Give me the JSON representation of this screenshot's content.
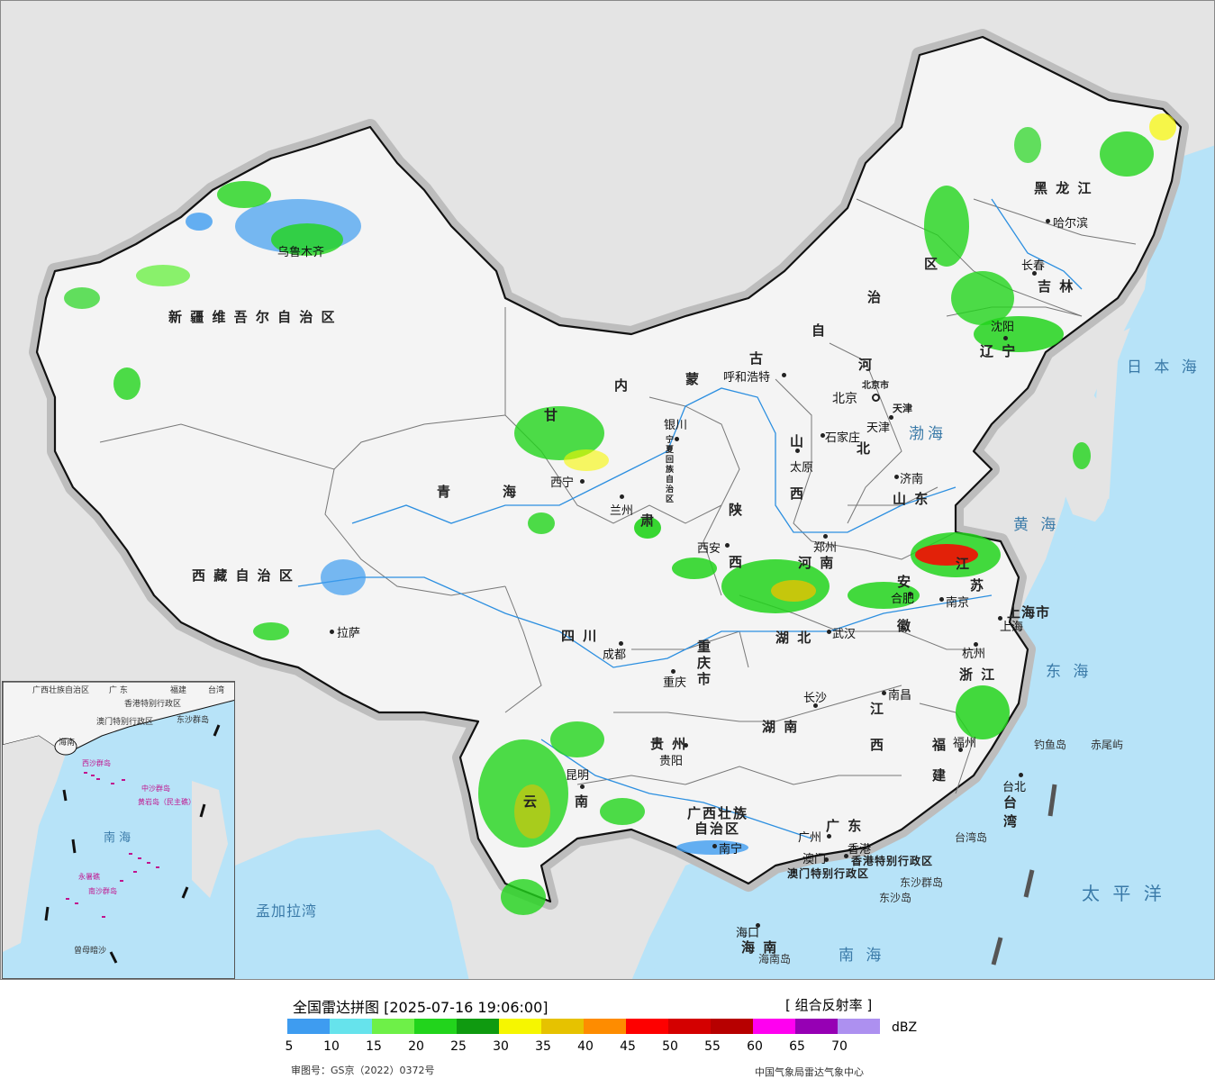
{
  "legend": {
    "title": "全国雷达拼图 [2025-07-16 19:06:00]",
    "mode": "[ 组合反射率 ]",
    "unit": "dBZ",
    "review_number": "审图号：GS京（2022）0372号",
    "organization": "中国气象局雷达气象中心",
    "ticks": [
      "5",
      "10",
      "15",
      "20",
      "25",
      "30",
      "35",
      "40",
      "45",
      "50",
      "55",
      "60",
      "65",
      "70"
    ],
    "colors": [
      "#3e9cf0",
      "#66e3ec",
      "#6ef048",
      "#22d41c",
      "#0f9a10",
      "#f6f600",
      "#e6c200",
      "#fe8c00",
      "#fe0000",
      "#d40000",
      "#b70000",
      "#ff00f0",
      "#9600b4",
      "#ad90f0"
    ]
  },
  "map": {
    "provinces": {
      "xinjiang": "新 疆 维 吾 尔 自 治 区",
      "xizang": "西 藏 自 治 区",
      "qinghai_1": "青",
      "qinghai_2": "海",
      "gansu_1": "甘",
      "gansu_2": "肃",
      "neimenggu_1": "内",
      "neimenggu_2": "蒙",
      "neimenggu_3": "古",
      "neimenggu_4": "自",
      "neimenggu_5": "治",
      "neimenggu_6": "区",
      "heilongjiang": "黑 龙 江",
      "jilin": "吉 林",
      "liaoning": "辽 宁",
      "hebei_1": "河",
      "hebei_2": "北",
      "shanxi_1": "山",
      "shanxi_2": "西",
      "shaanxi_1": "陕",
      "shaanxi_2": "西",
      "shandong": "山 东",
      "henan": "河 南",
      "jiangsu_1": "江",
      "jiangsu_2": "苏",
      "anhui_1": "安",
      "anhui_2": "徽",
      "hubei": "湖 北",
      "sichuan": "四 川",
      "chongqing_1": "重",
      "chongqing_2": "庆",
      "chongqing_3": "市",
      "zhejiang": "浙 江",
      "hunan": "湖 南",
      "jiangxi_1": "江",
      "jiangxi_2": "西",
      "fujian_1": "福",
      "fujian_2": "建",
      "guizhou": "贵 州",
      "yunnan_1": "云",
      "yunnan_2": "南",
      "guangxi_1": "广西壮族",
      "guangxi_2": "自治区",
      "guangdong": "广 东",
      "hainan": "海 南",
      "taiwan_1": "台",
      "taiwan_2": "湾",
      "ningxia": "宁夏回族自治区",
      "shanghai": "上海市",
      "tianjin": "天津",
      "beijing": "北京市",
      "hongkong": "香港特别行政区",
      "macau": "澳门特别行政区"
    },
    "cities": {
      "urumqi": "乌鲁木齐",
      "lhasa": "拉萨",
      "xining": "西宁",
      "lanzhou": "兰州",
      "yinchuan": "银川",
      "hohhot": "呼和浩特",
      "beijing": "北京",
      "tianjin": "天津",
      "shijiazhuang": "石家庄",
      "taiyuan": "太原",
      "jinan": "济南",
      "zhengzhou": "郑州",
      "xian": "西安",
      "hefei": "合肥",
      "nanjing": "南京",
      "shanghai": "上海",
      "hangzhou": "杭州",
      "wuhan": "武汉",
      "chengdu": "成都",
      "chongqing": "重庆",
      "changsha": "长沙",
      "nanchang": "南昌",
      "fuzhou": "福州",
      "guiyang": "贵阳",
      "kunming": "昆明",
      "nanning": "南宁",
      "guangzhou": "广州",
      "hongkong": "香港",
      "macau": "澳门",
      "haikou": "海口",
      "taipei": "台北",
      "harbin": "哈尔滨",
      "changchun": "长春",
      "shenyang": "沈阳"
    },
    "seas": {
      "bohai": "渤海",
      "huanghai": "黄 海",
      "donghai": "东 海",
      "nanhai": "南 海",
      "taipingyang": "太 平 洋",
      "ribenhai": "日 本 海",
      "mengjialawan": "孟加拉湾"
    },
    "islands": {
      "diaoyudao": "钓鱼岛",
      "chiweiyu": "赤尾屿",
      "taiwandao": "台湾岛",
      "dongshaqundao": "东沙群岛",
      "dongshadao": "东沙岛",
      "hainandao": "海南岛"
    }
  },
  "inset": {
    "guangxi": "广西壮族自治区",
    "guangdong": "广 东",
    "fujian": "福建",
    "taiwan": "台湾",
    "hongkong": "香港特别行政区",
    "macau": "澳门特别行政区",
    "dongsha": "东沙群岛",
    "hainan": "海南",
    "xisha": "西沙群岛",
    "zhongsha": "中沙群岛",
    "huangyandao": "黄岩岛（民主礁）",
    "nanhai": "南 海",
    "yongshujiao": "永暑礁",
    "nansha": "南沙群岛",
    "zengmuansha": "曾母暗沙"
  }
}
